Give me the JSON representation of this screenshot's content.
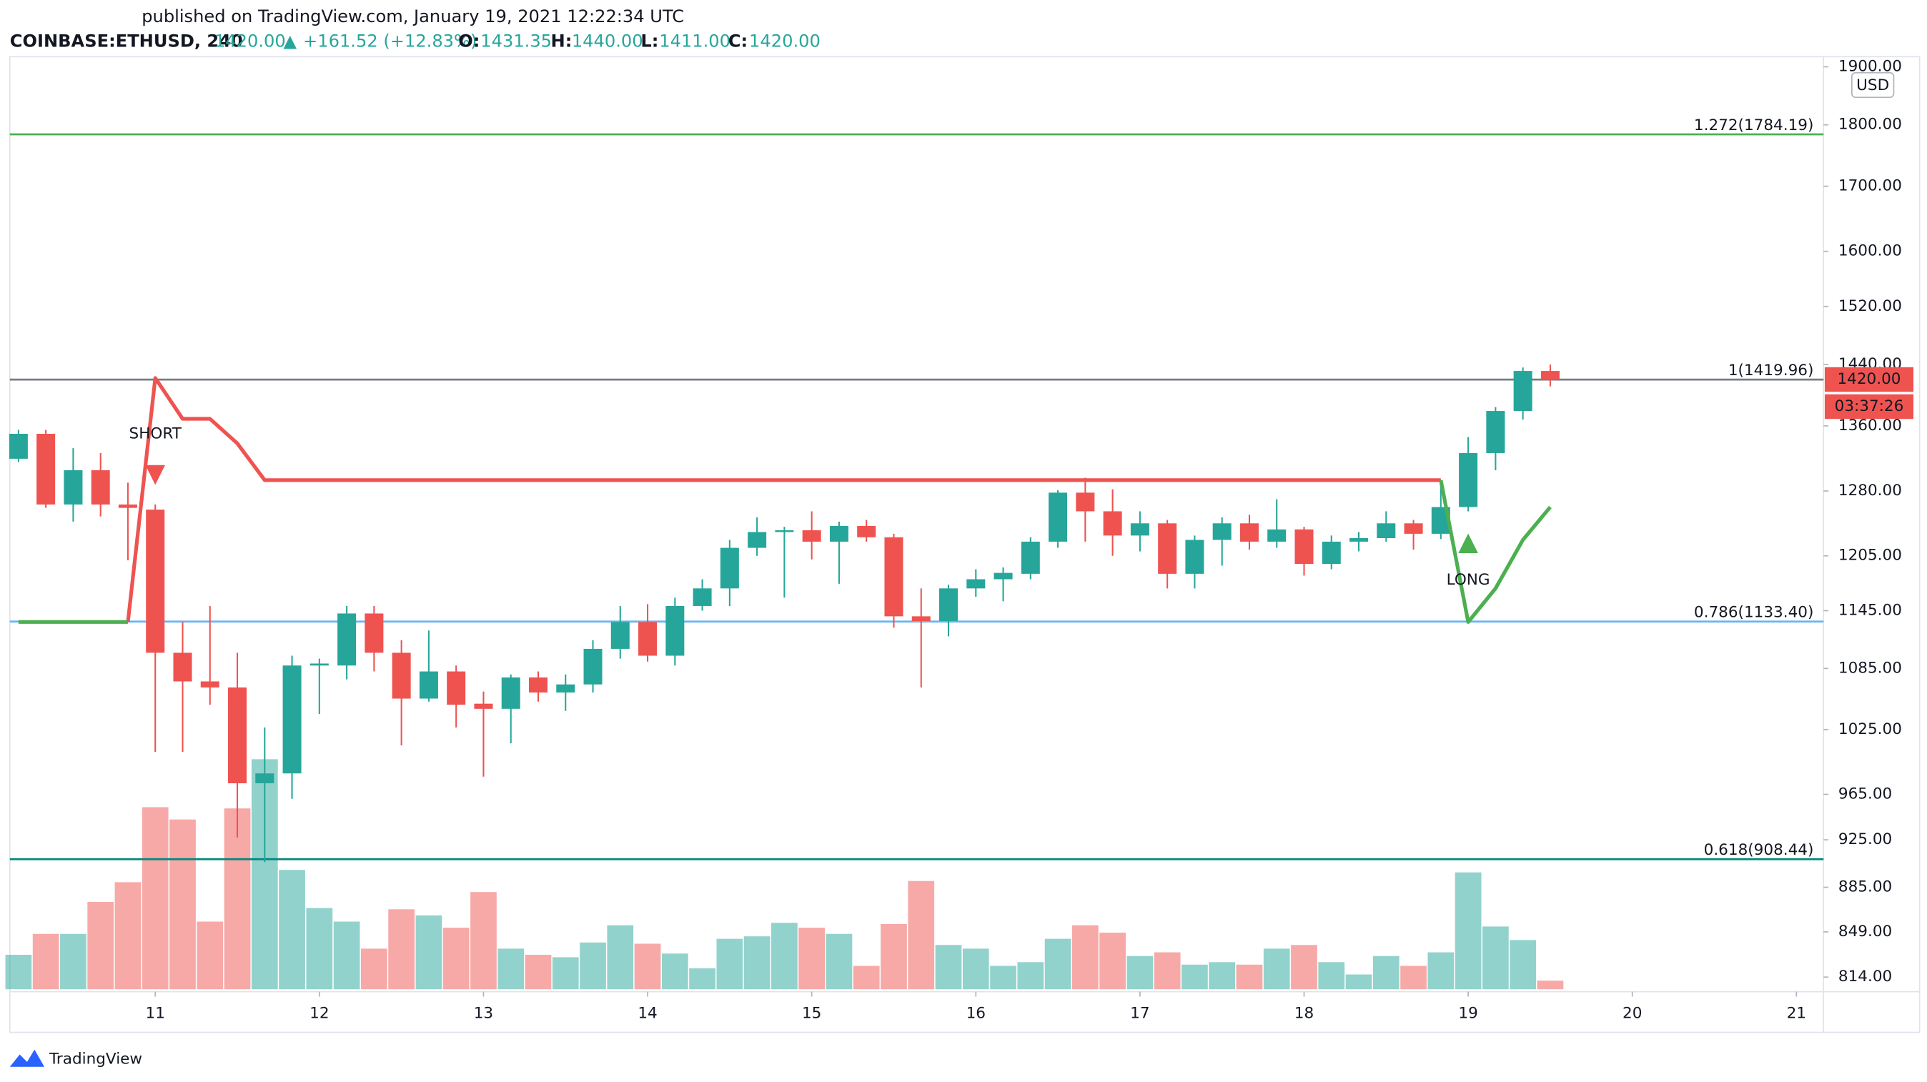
{
  "chart_data": {
    "type": "candlestick",
    "header": {
      "published": "published on TradingView.com, January 19, 2021 12:22:34 UTC",
      "symbol": "COINBASE:ETHUSD, 240",
      "price": "1420.00",
      "arrow": "▲",
      "change": "+161.52 (+12.83%)",
      "o_label": "O:",
      "o": "1431.35",
      "h_label": "H:",
      "h": "1440.00",
      "l_label": "L:",
      "l": "1411.00",
      "c_label": "C:",
      "c": "1420.00"
    },
    "currency": "USD",
    "countdown": "03:37:26",
    "brand": "TradingView",
    "log_scale": true,
    "up_color": "#26a69a",
    "down_color": "#ef5350",
    "xlim": [
      10.114,
      21.165
    ],
    "xticks": [
      11,
      12,
      13,
      14,
      15,
      16,
      17,
      18,
      19,
      20,
      21
    ],
    "ylim": [
      803,
      1918
    ],
    "yticks": [
      {
        "value": 1900,
        "label": "1900.00"
      },
      {
        "value": 1800,
        "label": "1800.00"
      },
      {
        "value": 1700,
        "label": "1700.00"
      },
      {
        "value": 1600,
        "label": "1600.00"
      },
      {
        "value": 1520,
        "label": "1520.00"
      },
      {
        "value": 1440,
        "label": "1440.00"
      },
      {
        "value": 1360,
        "label": "1360.00"
      },
      {
        "value": 1280,
        "label": "1280.00"
      },
      {
        "value": 1205,
        "label": "1205.00"
      },
      {
        "value": 1145,
        "label": "1145.00"
      },
      {
        "value": 1085,
        "label": "1085.00"
      },
      {
        "value": 1025,
        "label": "1025.00"
      },
      {
        "value": 965,
        "label": "965.00"
      },
      {
        "value": 925,
        "label": "925.00"
      },
      {
        "value": 885,
        "label": "885.00"
      },
      {
        "value": 849,
        "label": "849.00"
      },
      {
        "value": 814,
        "label": "814.00"
      }
    ],
    "x": [
      10.1667,
      10.3333,
      10.5,
      10.6667,
      10.8333,
      11,
      11.1667,
      11.3333,
      11.5,
      11.6667,
      11.8333,
      12,
      12.1667,
      12.3333,
      12.5,
      12.6667,
      12.8333,
      13,
      13.1667,
      13.3333,
      13.5,
      13.6667,
      13.8333,
      14,
      14.1667,
      14.3333,
      14.5,
      14.6667,
      14.8333,
      15,
      15.1667,
      15.3333,
      15.5,
      15.6667,
      15.8333,
      16,
      16.1667,
      16.3333,
      16.5,
      16.6667,
      16.8333,
      17,
      17.1667,
      17.3333,
      17.5,
      17.6667,
      17.8333,
      18,
      18.1667,
      18.3333,
      18.5,
      18.6667,
      18.8333,
      19,
      19.1667,
      19.3333,
      19.5
    ],
    "open": [
      1319,
      1350,
      1264,
      1305,
      1264,
      1258,
      1101,
      1072,
      1066,
      975,
      984,
      1088,
      1088,
      1142,
      1101,
      1055,
      1082,
      1050,
      1045,
      1076,
      1061,
      1069,
      1105,
      1133,
      1098,
      1150,
      1169,
      1214,
      1232,
      1234,
      1221,
      1239,
      1226,
      1139,
      1134,
      1169,
      1179,
      1185,
      1221,
      1278,
      1256,
      1228,
      1242,
      1185,
      1223,
      1242,
      1221,
      1235,
      1196,
      1221,
      1225,
      1242,
      1230,
      1261,
      1326,
      1379,
      1431.35
    ],
    "high": [
      1355,
      1355,
      1332,
      1326,
      1290,
      1264,
      1133,
      1150,
      1101,
      1027,
      1098,
      1095,
      1150,
      1150,
      1114,
      1124,
      1088,
      1062,
      1079,
      1082,
      1079,
      1114,
      1150,
      1152,
      1159,
      1179,
      1223,
      1249,
      1238,
      1256,
      1244,
      1246,
      1230,
      1169,
      1173,
      1190,
      1192,
      1226,
      1281,
      1296,
      1282,
      1256,
      1246,
      1228,
      1249,
      1252,
      1270,
      1238,
      1228,
      1232,
      1256,
      1246,
      1293,
      1346,
      1384,
      1436,
      1440
    ],
    "low": [
      1315,
      1260,
      1244,
      1250,
      1200,
      1004,
      1004,
      1049,
      927,
      906,
      961,
      1040,
      1074,
      1082,
      1010,
      1052,
      1027,
      981,
      1012,
      1052,
      1043,
      1061,
      1095,
      1092,
      1088,
      1145,
      1150,
      1205,
      1159,
      1201,
      1174,
      1221,
      1127,
      1066,
      1118,
      1160,
      1155,
      1179,
      1214,
      1221,
      1205,
      1210,
      1169,
      1169,
      1194,
      1212,
      1214,
      1183,
      1190,
      1210,
      1221,
      1212,
      1224,
      1256,
      1305,
      1368,
      1411
    ],
    "close": [
      1350,
      1264,
      1305,
      1264,
      1260,
      1101,
      1072,
      1066,
      975,
      984,
      1088,
      1090,
      1142,
      1101,
      1055,
      1082,
      1049,
      1045,
      1076,
      1061,
      1069,
      1105,
      1133,
      1098,
      1150,
      1169,
      1214,
      1232,
      1234,
      1221,
      1239,
      1226,
      1139,
      1134,
      1169,
      1179,
      1186,
      1221,
      1278,
      1256,
      1228,
      1242,
      1185,
      1223,
      1242,
      1221,
      1235,
      1196,
      1221,
      1225,
      1242,
      1230,
      1261,
      1326,
      1379,
      1431.35,
      1420
    ],
    "volume": [
      28,
      45,
      45,
      71,
      87,
      148,
      138,
      55,
      147,
      187,
      97,
      66,
      55,
      33,
      65,
      60,
      50,
      79,
      33,
      28,
      26,
      38,
      52,
      37,
      29,
      17,
      41,
      43,
      54,
      50,
      45,
      19,
      53,
      88,
      36,
      33,
      19,
      22,
      41,
      52,
      46,
      27,
      30,
      20,
      22,
      20,
      33,
      36,
      22,
      12,
      27,
      19,
      30,
      95,
      51,
      40,
      7
    ],
    "series": [
      {
        "color": "#ef5350",
        "values": [
          null,
          null,
          null,
          null,
          1133,
          1422,
          1369,
          1369,
          1338,
          1293,
          1293,
          1293,
          1293,
          1293,
          1293,
          1293,
          1293,
          1293,
          1293,
          1293,
          1293,
          1293,
          1293,
          1293,
          1293,
          1293,
          1293,
          1293,
          1293,
          1293,
          1293,
          1293,
          1293,
          1293,
          1293,
          1293,
          1293,
          1293,
          1293,
          1293,
          1293,
          1293,
          1293,
          1293,
          1293,
          1293,
          1293,
          1293,
          1293,
          1293,
          1293,
          1293,
          1293,
          null,
          null,
          null,
          null
        ]
      },
      {
        "color": "#4caf50",
        "values": [
          1133,
          1133,
          1133,
          1133,
          1133,
          null,
          null,
          null,
          null,
          null,
          null,
          null,
          null,
          null,
          null,
          null,
          null,
          null,
          null,
          null,
          null,
          null,
          null,
          null,
          null,
          null,
          null,
          null,
          null,
          null,
          null,
          null,
          null,
          null,
          null,
          null,
          null,
          null,
          null,
          null,
          null,
          null,
          null,
          null,
          null,
          null,
          null,
          null,
          null,
          null,
          null,
          null,
          1293,
          1133,
          1169,
          1223,
          1261
        ]
      }
    ],
    "signals": [
      {
        "label": "SHORT",
        "x": 11,
        "direction": "down",
        "color": "#ef5350"
      },
      {
        "label": "LONG",
        "x": 19,
        "direction": "up",
        "color": "#4caf50"
      }
    ],
    "levels": [
      {
        "label": "1.272(1784.19)",
        "value": 1784.19,
        "color": "#4caf50"
      },
      {
        "label": "1(1419.96)",
        "value": 1419.96,
        "color": "#787b86"
      },
      {
        "label": "0.786(1133.40)",
        "value": 1133.4,
        "color": "#64b5f6"
      },
      {
        "label": "0.618(908.44)",
        "value": 908.44,
        "color": "#00897b"
      }
    ]
  }
}
